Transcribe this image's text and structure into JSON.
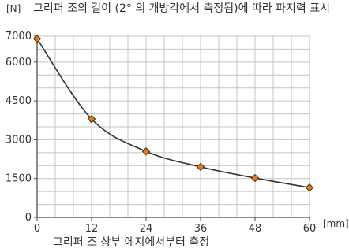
{
  "chart_data": {
    "type": "line",
    "title": "그리퍼 조의 길이 (2° 의 개방각에서 측정됨)에 따라 파지력 표시",
    "ylabel": "[N]",
    "xlabel": "그리퍼 조 상부 에지에서부터 측정",
    "x_unit": "[mm]",
    "xlim": [
      0,
      60
    ],
    "ylim": [
      0,
      7000
    ],
    "x_ticks": [
      0,
      12,
      24,
      36,
      48,
      60
    ],
    "y_ticks": [
      0,
      1500,
      3000,
      4500,
      6000,
      7000
    ],
    "grid": true,
    "legend": "none",
    "series": [
      {
        "x": [
          0,
          12,
          24,
          36,
          48,
          60
        ],
        "y": [
          6900,
          3800,
          2550,
          1950,
          1520,
          1150
        ]
      }
    ],
    "colors": {
      "line": "#333333",
      "marker_fill": "#e07b1e",
      "marker_stroke": "#4a2a0a",
      "grid": "#c4c4c4",
      "axis": "#444444"
    }
  }
}
